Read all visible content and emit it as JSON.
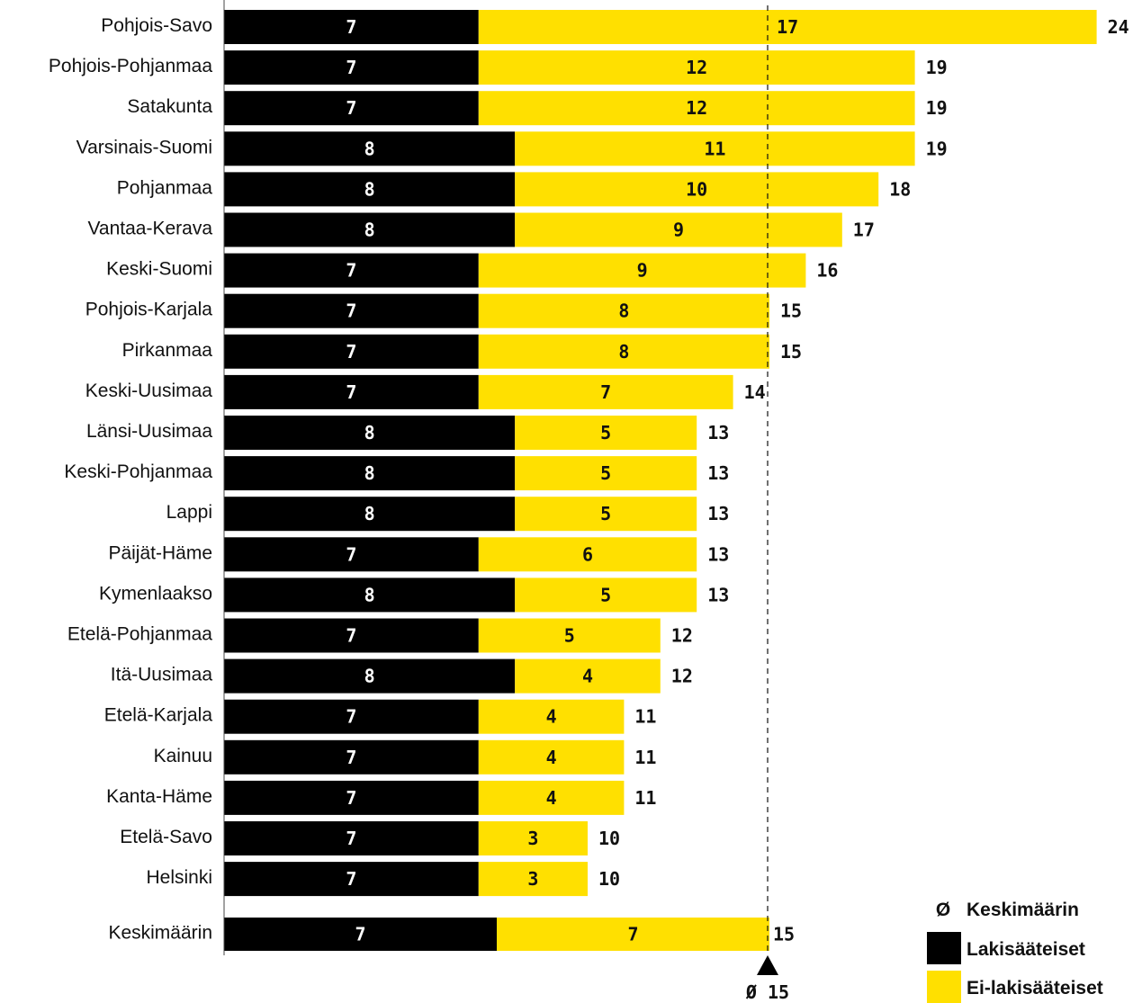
{
  "chart_data": {
    "type": "bar",
    "orientation": "horizontal",
    "stacked": true,
    "categories": [
      "Pohjois-Savo",
      "Pohjois-Pohjanmaa",
      "Satakunta",
      "Varsinais-Suomi",
      "Pohjanmaa",
      "Vantaa-Kerava",
      "Keski-Suomi",
      "Pohjois-Karjala",
      "Pirkanmaa",
      "Keski-Uusimaa",
      "Länsi-Uusimaa",
      "Keski-Pohjanmaa",
      "Lappi",
      "Päijät-Häme",
      "Kymenlaakso",
      "Etelä-Pohjanmaa",
      "Itä-Uusimaa",
      "Etelä-Karjala",
      "Kainuu",
      "Kanta-Häme",
      "Etelä-Savo",
      "Helsinki"
    ],
    "series": [
      {
        "name": "Lakisääteiset",
        "color": "#000000",
        "values": [
          7,
          7,
          7,
          8,
          8,
          8,
          7,
          7,
          7,
          7,
          8,
          8,
          8,
          7,
          8,
          7,
          8,
          7,
          7,
          7,
          7,
          7
        ]
      },
      {
        "name": "Ei-lakisääteiset",
        "color": "#FFE000",
        "values": [
          17,
          12,
          12,
          11,
          10,
          9,
          9,
          8,
          8,
          7,
          5,
          5,
          5,
          6,
          5,
          5,
          4,
          4,
          4,
          4,
          3,
          3
        ]
      }
    ],
    "totals": [
      24,
      19,
      19,
      19,
      18,
      17,
      16,
      15,
      15,
      14,
      13,
      13,
      13,
      13,
      13,
      12,
      12,
      11,
      11,
      11,
      10,
      10
    ],
    "average_row": {
      "label": "Keskimäärin",
      "values": [
        7,
        7
      ],
      "value_labels": [
        "7",
        "7"
      ],
      "total": "15"
    },
    "average_line": {
      "value": 15,
      "label": "Ø 15"
    },
    "xlim": [
      0,
      24
    ],
    "grid": false,
    "legend": {
      "position": "bottom-right",
      "items": [
        {
          "symbol": "Ø",
          "label": "Keskimäärin"
        },
        {
          "label": "Lakisääteiset",
          "color": "#000000"
        },
        {
          "label": "Ei-lakisääteiset",
          "color": "#FFE000"
        }
      ]
    }
  }
}
